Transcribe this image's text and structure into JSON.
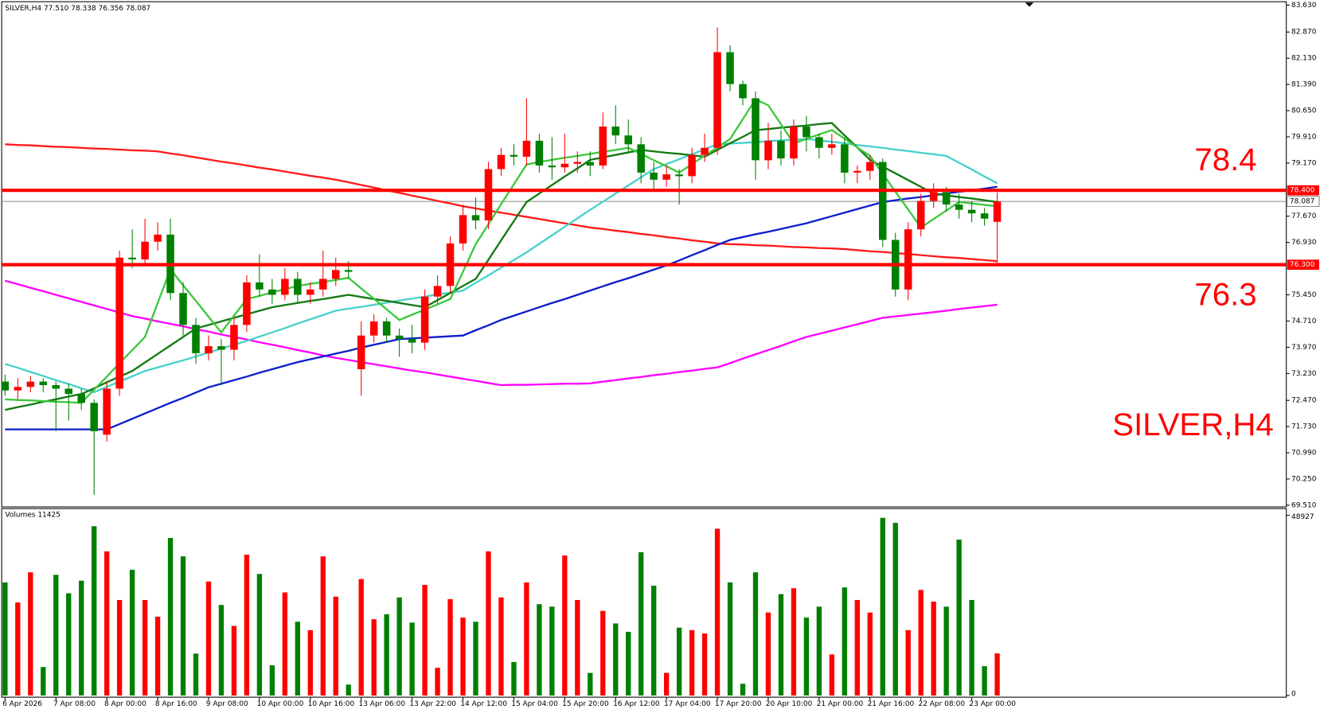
{
  "chart_data": {
    "type": "candlestick",
    "header": "SILVER,H4  77.510 78.338 76.356 78.087",
    "watermark": "SILVER,H4",
    "categories": [
      "6 Apr 2026",
      null,
      null,
      null,
      "7 Apr 08:00",
      null,
      null,
      null,
      "8 Apr 00:00",
      null,
      null,
      null,
      "8 Apr 16:00",
      null,
      null,
      null,
      "9 Apr 08:00",
      null,
      null,
      null,
      "10 Apr 00:00",
      null,
      null,
      null,
      "10 Apr 16:00",
      null,
      null,
      null,
      "13 Apr 06:00",
      null,
      null,
      null,
      "13 Apr 22:00",
      null,
      null,
      null,
      "14 Apr 12:00",
      null,
      null,
      null,
      "15 Apr 04:00",
      null,
      null,
      null,
      "15 Apr 20:00",
      null,
      null,
      null,
      "16 Apr 12:00",
      null,
      null,
      null,
      "17 Apr 04:00",
      null,
      null,
      null,
      "17 Apr 20:00",
      null,
      null,
      null,
      "20 Apr 10:00",
      null,
      null,
      null,
      "21 Apr 00:00",
      null,
      null,
      null,
      "21 Apr 16:00",
      null,
      null,
      null,
      "22 Apr 08:00",
      null,
      null,
      null,
      "23 Apr 00:00",
      null,
      null
    ],
    "open": [
      73.0,
      72.75,
      72.85,
      73.0,
      72.9,
      72.8,
      72.65,
      72.4,
      71.5,
      72.8,
      76.5,
      76.45,
      76.95,
      77.15,
      75.5,
      74.6,
      73.8,
      74.0,
      73.9,
      74.6,
      75.8,
      75.6,
      75.45,
      75.9,
      75.45,
      75.6,
      75.9,
      76.15,
      73.35,
      74.3,
      74.7,
      74.3,
      74.2,
      74.1,
      75.4,
      75.7,
      76.9,
      77.7,
      77.55,
      79.0,
      79.4,
      79.35,
      79.8,
      79.1,
      79.05,
      79.15,
      79.2,
      79.1,
      80.2,
      79.95,
      79.7,
      78.9,
      78.7,
      78.85,
      78.8,
      79.4,
      79.6,
      82.3,
      81.4,
      81.0,
      79.25,
      79.8,
      79.3,
      80.2,
      79.9,
      79.6,
      79.7,
      78.9,
      78.95,
      79.2,
      77.0,
      75.6,
      77.3,
      78.1,
      78.35,
      78.0,
      77.85,
      77.75,
      77.51
    ],
    "high": [
      73.2,
      73.1,
      73.15,
      73.1,
      73.0,
      72.95,
      72.8,
      72.5,
      73.0,
      76.7,
      77.3,
      77.6,
      77.5,
      77.6,
      75.8,
      74.8,
      74.3,
      74.2,
      74.8,
      76.0,
      76.6,
      75.9,
      76.2,
      76.1,
      75.8,
      76.7,
      76.5,
      76.4,
      74.7,
      74.9,
      74.8,
      74.5,
      74.6,
      75.6,
      76.0,
      77.1,
      78.0,
      78.2,
      79.2,
      79.6,
      79.7,
      81.0,
      80.0,
      79.9,
      80.0,
      79.5,
      79.5,
      80.6,
      80.8,
      80.4,
      79.9,
      79.2,
      79.1,
      79.0,
      79.6,
      80.0,
      83.0,
      82.5,
      81.5,
      81.2,
      80.3,
      80.1,
      80.4,
      80.5,
      80.0,
      80.0,
      79.9,
      79.1,
      79.4,
      79.3,
      77.2,
      77.5,
      78.3,
      78.6,
      78.5,
      78.3,
      78.1,
      77.9,
      78.338
    ],
    "low": [
      72.6,
      72.5,
      72.7,
      72.7,
      71.6,
      71.9,
      72.2,
      69.8,
      71.3,
      72.6,
      76.2,
      76.3,
      76.7,
      75.3,
      74.3,
      73.5,
      73.6,
      72.9,
      73.6,
      74.4,
      75.4,
      75.2,
      75.3,
      75.2,
      75.2,
      75.4,
      75.7,
      75.9,
      72.6,
      74.1,
      74.1,
      73.7,
      73.8,
      73.9,
      75.2,
      75.5,
      76.7,
      77.3,
      77.3,
      78.8,
      79.1,
      79.1,
      78.9,
      78.7,
      78.9,
      78.9,
      78.8,
      79.0,
      79.7,
      79.5,
      78.6,
      78.4,
      78.5,
      78.0,
      78.6,
      79.2,
      79.4,
      81.2,
      80.8,
      78.7,
      79.0,
      79.1,
      79.1,
      79.5,
      79.3,
      79.4,
      78.6,
      78.6,
      78.7,
      76.8,
      75.4,
      75.3,
      77.1,
      77.9,
      77.8,
      77.6,
      77.5,
      77.4,
      76.356
    ],
    "close": [
      72.75,
      72.85,
      73.0,
      72.9,
      72.8,
      72.65,
      72.4,
      71.6,
      72.8,
      76.5,
      76.45,
      76.95,
      77.15,
      75.5,
      74.6,
      73.8,
      74.0,
      73.9,
      74.6,
      75.8,
      75.6,
      75.45,
      75.9,
      75.45,
      75.6,
      75.9,
      76.15,
      76.1,
      74.3,
      74.7,
      74.3,
      74.2,
      74.1,
      75.4,
      75.7,
      76.9,
      77.7,
      77.55,
      79.0,
      79.4,
      79.35,
      79.8,
      79.1,
      79.05,
      79.15,
      79.2,
      79.1,
      80.2,
      79.95,
      79.7,
      78.9,
      78.7,
      78.85,
      78.8,
      79.4,
      79.6,
      82.3,
      81.4,
      81.0,
      79.25,
      79.8,
      79.3,
      80.2,
      79.9,
      79.6,
      79.7,
      78.9,
      78.95,
      79.2,
      77.0,
      75.6,
      77.3,
      78.1,
      78.35,
      78.0,
      77.85,
      77.75,
      77.6,
      78.087
    ],
    "up_color": "#ff0000",
    "down_color": "#008000",
    "ylim": [
      69.51,
      83.63
    ],
    "yticks": [
      {
        "value": 83.63,
        "label": "83.630"
      },
      {
        "value": 82.87,
        "label": "82.870"
      },
      {
        "value": 82.13,
        "label": "82.130"
      },
      {
        "value": 81.39,
        "label": "81.390"
      },
      {
        "value": 80.65,
        "label": "80.650"
      },
      {
        "value": 79.91,
        "label": "79.910"
      },
      {
        "value": 79.17,
        "label": "79.170"
      },
      {
        "value": 77.67,
        "label": "77.670"
      },
      {
        "value": 76.93,
        "label": "76.930"
      },
      {
        "value": 75.45,
        "label": "75.450"
      },
      {
        "value": 74.71,
        "label": "74.710"
      },
      {
        "value": 73.97,
        "label": "73.970"
      },
      {
        "value": 73.23,
        "label": "73.230"
      },
      {
        "value": 72.47,
        "label": "72.470"
      },
      {
        "value": 71.73,
        "label": "71.730"
      },
      {
        "value": 70.99,
        "label": "70.990"
      },
      {
        "value": 70.25,
        "label": "70.250"
      },
      {
        "value": 69.51,
        "label": "69.510"
      }
    ],
    "levels": [
      {
        "value": 78.4,
        "axis_label": "78.400",
        "color": "#ff0000"
      },
      {
        "value": 76.3,
        "axis_label": "76.300",
        "color": "#ff0000"
      }
    ],
    "current_price": 78.087,
    "series": [
      {
        "color": "#ff1a1a",
        "values": [
          79.7,
          79.68,
          79.67,
          79.65,
          79.63,
          79.62,
          79.6,
          79.58,
          79.57,
          79.55,
          79.53,
          79.52,
          79.5,
          79.44,
          79.39,
          79.33,
          79.27,
          79.21,
          79.16,
          79.1,
          79.04,
          78.99,
          78.93,
          78.87,
          78.81,
          78.76,
          78.7,
          78.63,
          78.55,
          78.48,
          78.4,
          78.33,
          78.25,
          78.18,
          78.1,
          78.03,
          77.95,
          77.89,
          77.83,
          77.77,
          77.71,
          77.65,
          77.59,
          77.53,
          77.47,
          77.41,
          77.35,
          77.31,
          77.26,
          77.22,
          77.17,
          77.13,
          77.08,
          77.04,
          76.99,
          76.95,
          76.9,
          76.88,
          76.87,
          76.85,
          76.84,
          76.82,
          76.8,
          76.79,
          76.77,
          76.76,
          76.74,
          76.71,
          76.68,
          76.66,
          76.63,
          76.6,
          76.57,
          76.54,
          76.51,
          76.49,
          76.46,
          76.43,
          76.4
        ]
      },
      {
        "color": "#ff00ff",
        "values": [
          75.85,
          75.75,
          75.65,
          75.55,
          75.45,
          75.35,
          75.25,
          75.15,
          75.05,
          74.95,
          74.85,
          74.78,
          74.7,
          74.63,
          74.56,
          74.48,
          74.41,
          74.33,
          74.26,
          74.19,
          74.11,
          74.04,
          73.97,
          73.89,
          73.82,
          73.74,
          73.67,
          73.61,
          73.55,
          73.49,
          73.43,
          73.37,
          73.31,
          73.26,
          73.2,
          73.14,
          73.08,
          73.02,
          72.96,
          72.9,
          72.91,
          72.91,
          72.92,
          72.93,
          72.94,
          72.94,
          72.95,
          73.0,
          73.04,
          73.09,
          73.13,
          73.18,
          73.22,
          73.27,
          73.31,
          73.36,
          73.4,
          73.52,
          73.65,
          73.77,
          73.89,
          74.01,
          74.14,
          74.26,
          74.35,
          74.44,
          74.53,
          74.62,
          74.71,
          74.8,
          74.84,
          74.88,
          74.92,
          74.96,
          75.0,
          75.05,
          75.09,
          75.13,
          75.17
        ]
      },
      {
        "color": "#0a1ecc",
        "values": [
          71.65,
          71.65,
          71.65,
          71.65,
          71.65,
          71.65,
          71.65,
          71.65,
          71.65,
          71.8,
          71.95,
          72.1,
          72.25,
          72.4,
          72.54,
          72.69,
          72.84,
          72.94,
          73.04,
          73.14,
          73.25,
          73.35,
          73.45,
          73.55,
          73.63,
          73.71,
          73.79,
          73.87,
          73.96,
          74.04,
          74.12,
          74.2,
          74.22,
          74.24,
          74.26,
          74.28,
          74.3,
          74.45,
          74.59,
          74.74,
          74.86,
          74.98,
          75.1,
          75.22,
          75.33,
          75.45,
          75.57,
          75.69,
          75.81,
          75.92,
          76.04,
          76.16,
          76.28,
          76.42,
          76.57,
          76.71,
          76.86,
          77.0,
          77.08,
          77.16,
          77.23,
          77.31,
          77.39,
          77.47,
          77.57,
          77.67,
          77.77,
          77.87,
          77.97,
          78.07,
          78.12,
          78.17,
          78.21,
          78.26,
          78.31,
          78.36,
          78.4,
          78.45,
          78.5
        ]
      },
      {
        "color": "#48d1cc",
        "values": [
          73.5,
          73.39,
          73.27,
          73.16,
          73.04,
          72.93,
          72.81,
          72.7,
          72.85,
          73.0,
          73.15,
          73.3,
          73.4,
          73.5,
          73.6,
          73.71,
          73.82,
          73.93,
          74.04,
          74.15,
          74.27,
          74.39,
          74.51,
          74.64,
          74.76,
          74.88,
          75.0,
          75.06,
          75.11,
          75.17,
          75.23,
          75.29,
          75.34,
          75.4,
          75.46,
          75.51,
          75.57,
          75.79,
          76.0,
          76.22,
          76.43,
          76.65,
          76.89,
          77.13,
          77.37,
          77.61,
          77.85,
          78.08,
          78.31,
          78.54,
          78.77,
          79.0,
          79.14,
          79.28,
          79.42,
          79.56,
          79.7,
          79.72,
          79.74,
          79.76,
          79.79,
          79.81,
          79.83,
          79.85,
          79.81,
          79.77,
          79.73,
          79.68,
          79.64,
          79.6,
          79.55,
          79.51,
          79.46,
          79.42,
          79.37,
          79.18,
          78.99,
          78.79,
          78.6
        ]
      },
      {
        "color": "#117a11",
        "values": [
          72.2,
          72.28,
          72.35,
          72.43,
          72.5,
          72.58,
          72.65,
          72.81,
          72.98,
          73.14,
          73.3,
          73.54,
          73.78,
          74.02,
          74.26,
          74.5,
          74.6,
          74.7,
          74.8,
          74.9,
          75.0,
          75.1,
          75.16,
          75.22,
          75.28,
          75.33,
          75.39,
          75.45,
          75.39,
          75.33,
          75.28,
          75.22,
          75.16,
          75.1,
          75.3,
          75.5,
          75.7,
          75.9,
          76.44,
          76.99,
          77.53,
          78.07,
          78.31,
          78.55,
          78.79,
          79.02,
          79.26,
          79.33,
          79.4,
          79.47,
          79.54,
          79.5,
          79.46,
          79.43,
          79.39,
          79.35,
          79.54,
          79.73,
          79.91,
          80.1,
          80.13,
          80.17,
          80.2,
          80.23,
          80.27,
          80.3,
          79.95,
          79.61,
          79.26,
          79.07,
          78.88,
          78.69,
          78.5,
          78.31,
          78.26,
          78.21,
          78.17,
          78.12,
          78.07
        ]
      },
      {
        "color": "#3cc83c",
        "values": [
          72.5,
          72.48,
          72.47,
          72.45,
          72.43,
          72.42,
          72.4,
          72.77,
          73.14,
          73.52,
          73.89,
          74.26,
          75.22,
          76.17,
          75.72,
          75.28,
          74.83,
          74.39,
          74.86,
          75.33,
          75.42,
          75.52,
          75.61,
          75.7,
          75.76,
          75.81,
          75.87,
          75.93,
          75.63,
          75.34,
          75.04,
          74.74,
          74.89,
          75.03,
          75.18,
          75.33,
          76.1,
          76.88,
          77.44,
          78.01,
          78.57,
          79.13,
          79.2,
          79.26,
          79.32,
          79.37,
          79.43,
          79.49,
          79.54,
          79.6,
          79.43,
          79.25,
          79.08,
          78.9,
          79.14,
          79.38,
          79.61,
          79.85,
          80.41,
          80.97,
          80.8,
          80.27,
          79.73,
          79.85,
          79.98,
          80.1,
          79.86,
          79.61,
          79.37,
          78.87,
          78.36,
          77.86,
          77.35,
          77.59,
          77.83,
          78.07,
          78.03,
          77.99,
          77.95
        ]
      }
    ],
    "volume": {
      "label": "Volumes",
      "values": [
        30700,
        25260,
        33450,
        7740,
        32770,
        27760,
        31180,
        45970,
        39140,
        25940,
        34140,
        25940,
        21390,
        42780,
        37780,
        11380,
        30950,
        24580,
        18890,
        38230,
        33000,
        8190,
        27990,
        20030,
        17750,
        37780,
        26850,
        2960,
        31630,
        20710,
        22070,
        26630,
        19800,
        30040,
        7510,
        26170,
        21160,
        20030,
        39140,
        26630,
        9100,
        30720,
        24800,
        24120,
        38000,
        25940,
        6140,
        22980,
        19570,
        17290,
        38910,
        29810,
        6140,
        18430,
        17750,
        16840,
        45280,
        30720,
        3190,
        33450,
        22530,
        27530,
        29130,
        21160,
        24120,
        11150,
        29350,
        25940,
        22530,
        48240,
        46870,
        17750,
        28670,
        25490,
        24120,
        42330,
        25940,
        7960,
        11425
      ],
      "ylim": [
        0,
        48927
      ],
      "yticks": [
        48927,
        0
      ]
    }
  }
}
